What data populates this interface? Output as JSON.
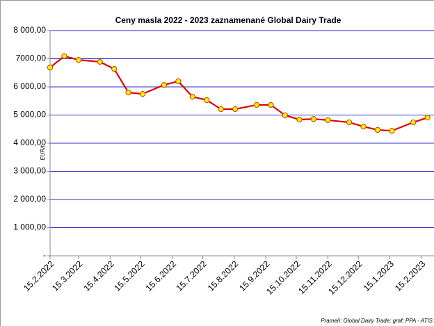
{
  "chart_data": {
    "type": "line",
    "title": "Ceny masla 2022 - 2023 zaznamenané Global Dairy Trade",
    "y_label": "EUR/t",
    "source": "Prameň: Global Dairy Trade; graf: PPA - ATIS",
    "x": [
      "15.2.2022",
      "1.3.2022",
      "15.3.2022",
      "5.4.2022",
      "19.4.2022",
      "3.5.2022",
      "17.5.2022",
      "7.6.2022",
      "21.6.2022",
      "5.7.2022",
      "19.7.2022",
      "2.8.2022",
      "16.8.2022",
      "6.9.2022",
      "20.9.2022",
      "4.10.2022",
      "18.10.2022",
      "1.11.2022",
      "15.11.2022",
      "6.12.2022",
      "20.12.2022",
      "3.1.2023",
      "17.1.2023",
      "7.2.2023",
      "21.2.2023"
    ],
    "series": [
      {
        "color": "#e00000",
        "marker_color": "#ffee00",
        "values": [
          6690,
          7090,
          6960,
          6890,
          6640,
          5800,
          5750,
          6070,
          6200,
          5650,
          5530,
          5210,
          5210,
          5360,
          5360,
          4990,
          4840,
          4860,
          4820,
          4740,
          4590,
          4470,
          4440,
          4740,
          4910
        ]
      }
    ],
    "xlim": [
      "15.2.2022",
      "26.2.2023"
    ],
    "xticks": [
      "15.2.2022",
      "15.3.2022",
      "15.4.2022",
      "15.5.2022",
      "15.6.2022",
      "15.7.2022",
      "15.8.2022",
      "15.9.2022",
      "15.10.2022",
      "15.11.2022",
      "15.12.2022",
      "15.1.2023",
      "15.2.2023"
    ],
    "ylim": [
      0,
      8000
    ],
    "yticks": [
      {
        "value": 0,
        "label": "-"
      },
      {
        "value": 1000,
        "label": "1 000,00"
      },
      {
        "value": 2000,
        "label": "2 000,00"
      },
      {
        "value": 3000,
        "label": "3 000,00"
      },
      {
        "value": 4000,
        "label": "4 000,00"
      },
      {
        "value": 5000,
        "label": "5 000,00"
      },
      {
        "value": 6000,
        "label": "6 000,00"
      },
      {
        "value": 7000,
        "label": "7000,00"
      },
      {
        "value": 8000,
        "label": "8 000,00"
      }
    ],
    "grid": true,
    "grid_color": "#2b2bc8"
  }
}
